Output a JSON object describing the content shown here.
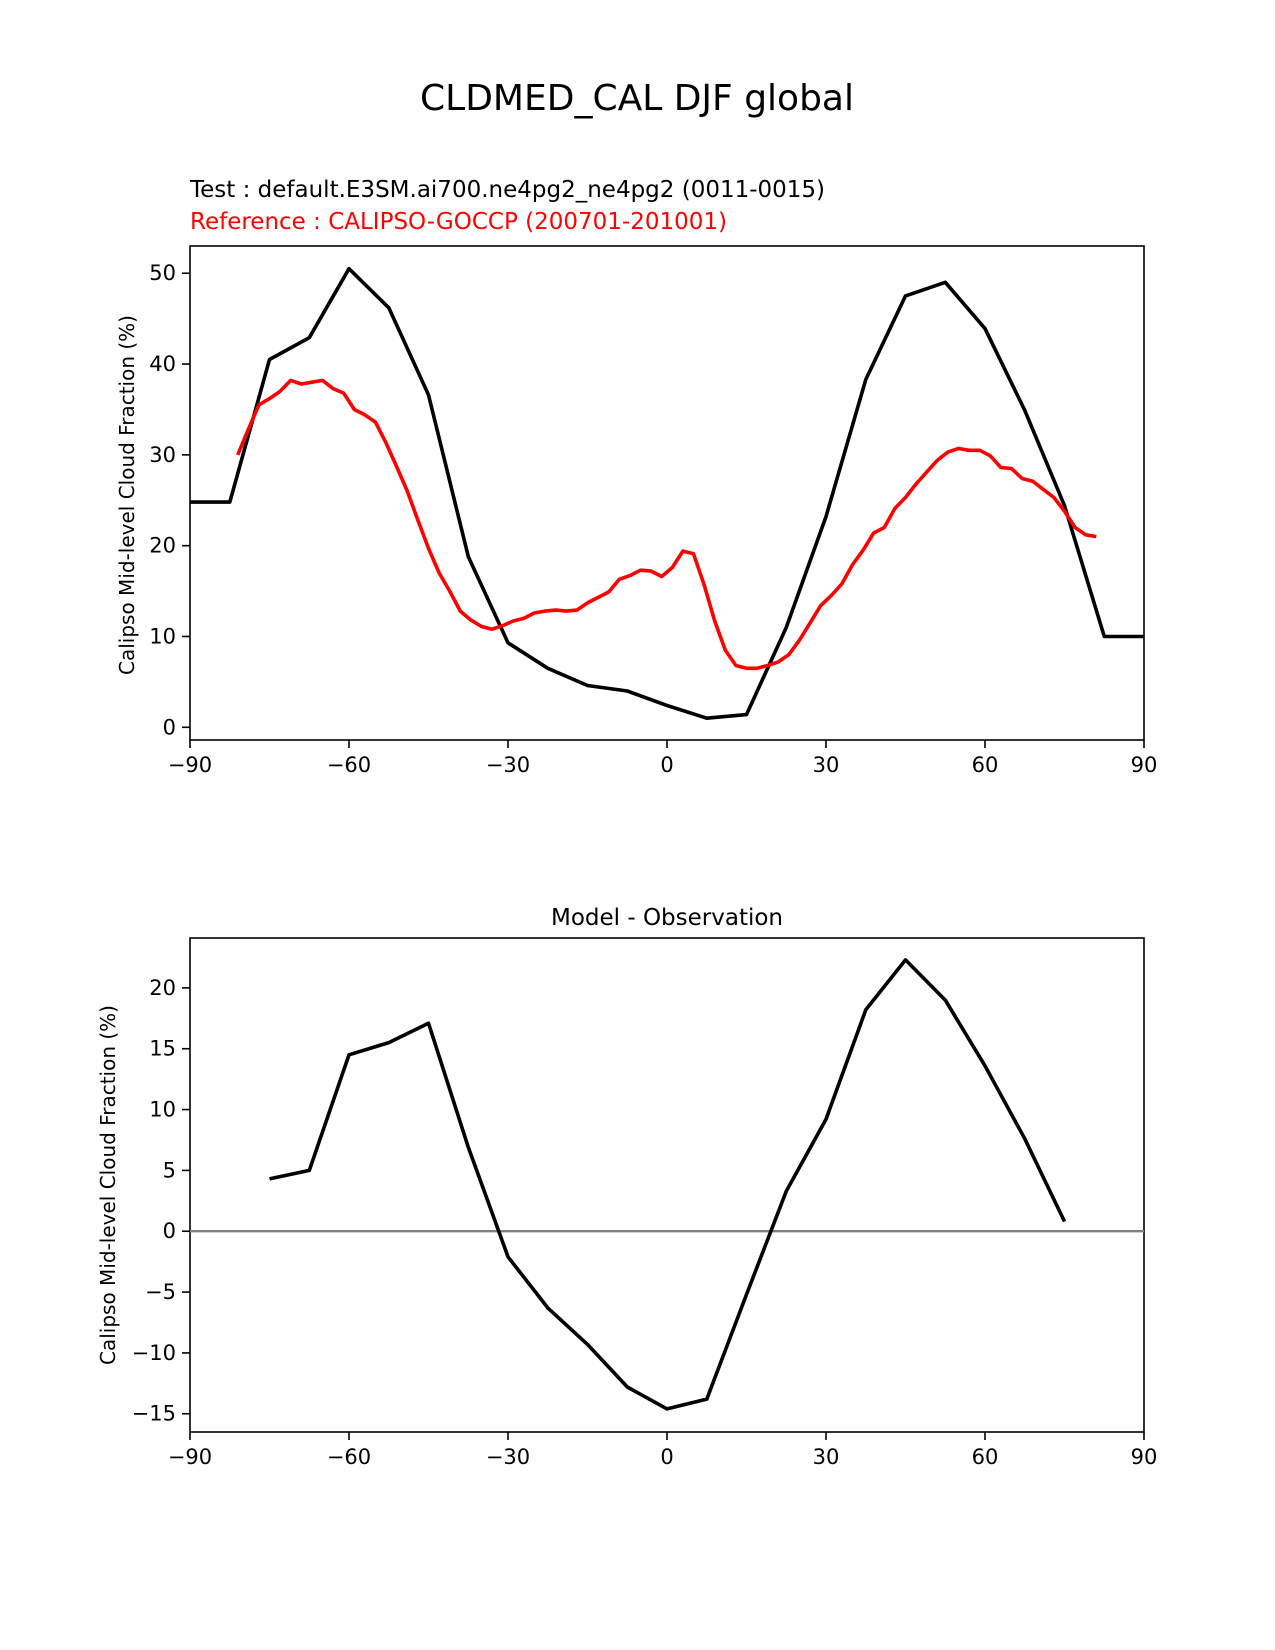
{
  "figure": {
    "title": "CLDMED_CAL DJF global",
    "colors": {
      "test": "#000000",
      "reference": "#ff0000",
      "zero_line": "#808080"
    }
  },
  "chart_data": [
    {
      "type": "line",
      "title_test": "Test : default.E3SM.ai700.ne4pg2_ne4pg2 (0011-0015)",
      "title_reference": "Reference : CALIPSO-GOCCP (200701-201001)",
      "xlabel": "",
      "ylabel": "Calipso Mid-level Cloud Fraction (%)",
      "xlim": [
        -90,
        90
      ],
      "ylim": [
        -1.4,
        53
      ],
      "xticks": [
        "−90",
        "−60",
        "−30",
        "0",
        "30",
        "60",
        "90"
      ],
      "xtick_values": [
        -90,
        -60,
        -30,
        0,
        30,
        60,
        90
      ],
      "yticks": [
        "0",
        "10",
        "20",
        "30",
        "40",
        "50"
      ],
      "ytick_values": [
        0,
        10,
        20,
        30,
        40,
        50
      ],
      "grid": false,
      "series": [
        {
          "key": "test",
          "x": [
            -90,
            -82.5,
            -75,
            -67.5,
            -60,
            -52.5,
            -45,
            -37.5,
            -30,
            -22.5,
            -15,
            -7.5,
            0,
            7.5,
            15,
            22.5,
            30,
            37.5,
            45,
            52.5,
            60,
            67.5,
            75,
            82.5,
            90
          ],
          "y": [
            24.8,
            24.8,
            40.5,
            42.9,
            50.5,
            46.2,
            36.6,
            18.8,
            9.3,
            6.5,
            4.6,
            4.0,
            2.4,
            1.0,
            1.4,
            11.0,
            23.2,
            38.3,
            47.5,
            49.0,
            43.9,
            34.9,
            24.4,
            10.0,
            10.0
          ]
        },
        {
          "key": "reference",
          "x": [
            -81,
            -79,
            -77,
            -75,
            -73,
            -71,
            -69,
            -67,
            -65,
            -63,
            -61,
            -59,
            -57,
            -55,
            -53,
            -51,
            -49,
            -47,
            -45,
            -43,
            -41,
            -39,
            -37,
            -35,
            -33,
            -31,
            -29,
            -27,
            -25,
            -23,
            -21,
            -19,
            -17,
            -15,
            -13,
            -11,
            -9,
            -7,
            -5,
            -3,
            -1,
            1,
            3,
            5,
            7,
            9,
            11,
            13,
            15,
            17,
            19,
            21,
            23,
            25,
            27,
            29,
            31,
            33,
            35,
            37,
            39,
            41,
            43,
            45,
            47,
            49,
            51,
            53,
            55,
            57,
            59,
            61,
            63,
            65,
            67,
            69,
            71,
            73,
            75,
            77,
            79,
            81
          ],
          "y": [
            30.0,
            32.8,
            35.5,
            36.2,
            37.0,
            38.2,
            37.8,
            38.0,
            38.2,
            37.3,
            36.8,
            35.0,
            34.4,
            33.6,
            31.3,
            28.7,
            26.0,
            22.8,
            19.7,
            17.0,
            15.0,
            12.8,
            11.8,
            11.1,
            10.8,
            11.2,
            11.7,
            12.0,
            12.6,
            12.8,
            12.9,
            12.8,
            12.9,
            13.7,
            14.3,
            14.9,
            16.3,
            16.7,
            17.3,
            17.2,
            16.6,
            17.6,
            19.4,
            19.1,
            15.7,
            11.7,
            8.5,
            6.8,
            6.5,
            6.5,
            6.8,
            7.2,
            8.0,
            9.6,
            11.5,
            13.4,
            14.5,
            15.8,
            17.9,
            19.5,
            21.4,
            22.0,
            24.1,
            25.3,
            26.8,
            28.1,
            29.4,
            30.3,
            30.7,
            30.5,
            30.5,
            29.9,
            28.6,
            28.5,
            27.4,
            27.1,
            26.2,
            25.3,
            23.8,
            22.0,
            21.2,
            21.0
          ]
        }
      ]
    },
    {
      "type": "line",
      "title": "Model - Observation",
      "xlabel": "",
      "ylabel": "Calipso Mid-level Cloud Fraction (%)",
      "xlim": [
        -90,
        90
      ],
      "ylim": [
        -16.5,
        24.1
      ],
      "xticks": [
        "−90",
        "−60",
        "−30",
        "0",
        "30",
        "60",
        "90"
      ],
      "xtick_values": [
        -90,
        -60,
        -30,
        0,
        30,
        60,
        90
      ],
      "yticks": [
        "−15",
        "−10",
        "−5",
        "0",
        "5",
        "10",
        "15",
        "20"
      ],
      "ytick_values": [
        -15,
        -10,
        -5,
        0,
        5,
        10,
        15,
        20
      ],
      "grid": false,
      "zero_line": 0,
      "series": [
        {
          "key": "test",
          "x": [
            -75,
            -67.5,
            -60,
            -52.5,
            -45,
            -37.5,
            -30,
            -22.5,
            -15,
            -7.5,
            0,
            7.5,
            15,
            22.5,
            30,
            37.5,
            45,
            52.5,
            60,
            67.5,
            75
          ],
          "y": [
            4.3,
            5.0,
            14.5,
            15.5,
            17.1,
            6.9,
            -2.1,
            -6.3,
            -9.3,
            -12.8,
            -14.6,
            -13.8,
            -5.2,
            3.3,
            9.2,
            18.2,
            22.3,
            19.0,
            13.6,
            7.6,
            0.8
          ]
        }
      ]
    }
  ]
}
